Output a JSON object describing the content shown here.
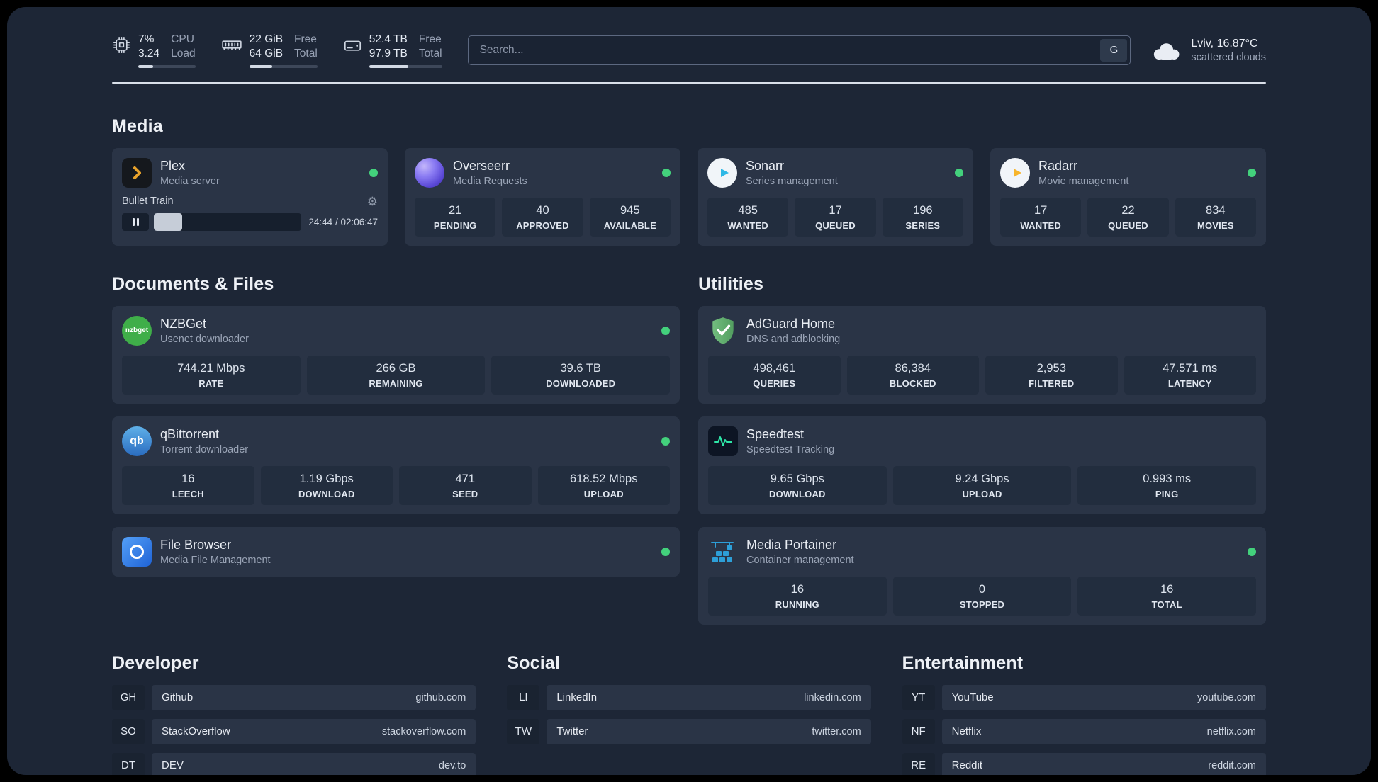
{
  "colors": {
    "status_online": "#43d17c",
    "plex_amber": "#e8a22b",
    "sonarr_blue": "#2eb8e6",
    "radarr_amber": "#f7b52c",
    "nzbget_green": "#3fae49",
    "adguard_green": "#67b279",
    "speedtest_green": "#2ee6a8",
    "portainer_blue": "#2d9fd8"
  },
  "icons": {
    "cpu": "cpu-chip",
    "memory": "memory-stick",
    "disk": "hard-drive",
    "weather": "cloud",
    "settings": "gear",
    "playback": "pause",
    "status": "green-dot"
  },
  "topbar": {
    "cpu": {
      "value_top": "7%",
      "value_bottom": "3.24",
      "label_top": "CPU",
      "label_bottom": "Load",
      "progress_pct": 26
    },
    "memory": {
      "value_top": "22 GiB",
      "value_bottom": "64 GiB",
      "label_top": "Free",
      "label_bottom": "Total",
      "progress_pct": 34
    },
    "disk": {
      "value_top": "52.4 TB",
      "value_bottom": "97.9 TB",
      "label_top": "Free",
      "label_bottom": "Total",
      "progress_pct": 54
    },
    "search": {
      "placeholder": "Search...",
      "provider_label": "G"
    },
    "weather": {
      "location": "Lviv, 16.87°C",
      "condition": "scattered clouds"
    }
  },
  "media": {
    "title": "Media",
    "plex": {
      "name": "Plex",
      "subtitle": "Media server",
      "now_playing": "Bullet Train",
      "time": "24:44 / 02:06:47",
      "progress_pct": 19
    },
    "cards": [
      {
        "name": "Overseerr",
        "subtitle": "Media Requests",
        "stats": [
          {
            "value": "21",
            "label": "PENDING"
          },
          {
            "value": "40",
            "label": "APPROVED"
          },
          {
            "value": "945",
            "label": "AVAILABLE"
          }
        ]
      },
      {
        "name": "Sonarr",
        "subtitle": "Series management",
        "stats": [
          {
            "value": "485",
            "label": "WANTED"
          },
          {
            "value": "17",
            "label": "QUEUED"
          },
          {
            "value": "196",
            "label": "SERIES"
          }
        ]
      },
      {
        "name": "Radarr",
        "subtitle": "Movie management",
        "stats": [
          {
            "value": "17",
            "label": "WANTED"
          },
          {
            "value": "22",
            "label": "QUEUED"
          },
          {
            "value": "834",
            "label": "MOVIES"
          }
        ]
      }
    ]
  },
  "documents": {
    "title": "Documents & Files",
    "cards": [
      {
        "name": "NZBGet",
        "subtitle": "Usenet downloader",
        "stats": [
          {
            "value": "744.21 Mbps",
            "label": "RATE"
          },
          {
            "value": "266 GB",
            "label": "REMAINING"
          },
          {
            "value": "39.6 TB",
            "label": "DOWNLOADED"
          }
        ]
      },
      {
        "name": "qBittorrent",
        "subtitle": "Torrent downloader",
        "stats": [
          {
            "value": "16",
            "label": "LEECH"
          },
          {
            "value": "1.19 Gbps",
            "label": "DOWNLOAD"
          },
          {
            "value": "471",
            "label": "SEED"
          },
          {
            "value": "618.52 Mbps",
            "label": "UPLOAD"
          }
        ]
      },
      {
        "name": "File Browser",
        "subtitle": "Media File Management",
        "stats": []
      }
    ]
  },
  "utilities": {
    "title": "Utilities",
    "cards": [
      {
        "name": "AdGuard Home",
        "subtitle": "DNS and adblocking",
        "stats": [
          {
            "value": "498,461",
            "label": "QUERIES"
          },
          {
            "value": "86,384",
            "label": "BLOCKED"
          },
          {
            "value": "2,953",
            "label": "FILTERED"
          },
          {
            "value": "47.571 ms",
            "label": "LATENCY"
          }
        ]
      },
      {
        "name": "Speedtest",
        "subtitle": "Speedtest Tracking",
        "stats": [
          {
            "value": "9.65 Gbps",
            "label": "DOWNLOAD"
          },
          {
            "value": "9.24 Gbps",
            "label": "UPLOAD"
          },
          {
            "value": "0.993 ms",
            "label": "PING"
          }
        ]
      },
      {
        "name": "Media Portainer",
        "subtitle": "Container management",
        "stats": [
          {
            "value": "16",
            "label": "RUNNING"
          },
          {
            "value": "0",
            "label": "STOPPED"
          },
          {
            "value": "16",
            "label": "TOTAL"
          }
        ]
      }
    ]
  },
  "bookmarks": [
    {
      "title": "Developer",
      "items": [
        {
          "abbr": "GH",
          "name": "Github",
          "url": "github.com"
        },
        {
          "abbr": "SO",
          "name": "StackOverflow",
          "url": "stackoverflow.com"
        },
        {
          "abbr": "DT",
          "name": "DEV",
          "url": "dev.to"
        }
      ]
    },
    {
      "title": "Social",
      "items": [
        {
          "abbr": "LI",
          "name": "LinkedIn",
          "url": "linkedin.com"
        },
        {
          "abbr": "TW",
          "name": "Twitter",
          "url": "twitter.com"
        }
      ]
    },
    {
      "title": "Entertainment",
      "items": [
        {
          "abbr": "YT",
          "name": "YouTube",
          "url": "youtube.com"
        },
        {
          "abbr": "NF",
          "name": "Netflix",
          "url": "netflix.com"
        },
        {
          "abbr": "RE",
          "name": "Reddit",
          "url": "reddit.com"
        }
      ]
    }
  ]
}
